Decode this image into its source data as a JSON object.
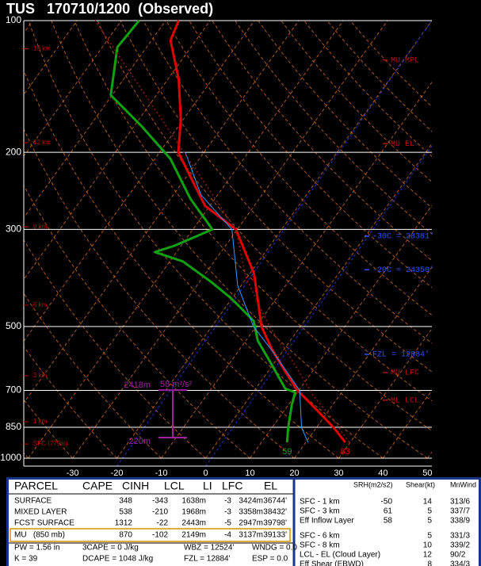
{
  "chart_data": {
    "type": "skewt",
    "title": "TUS   170710/1200  (Observed)",
    "xlim": [
      -41,
      51
    ],
    "xticks": [
      -30,
      -20,
      -10,
      0,
      10,
      20,
      30,
      40,
      50
    ],
    "ylim": [
      1000,
      100
    ],
    "yticks": [
      100,
      200,
      300,
      500,
      700,
      850,
      1000
    ],
    "log_scale": true,
    "grid": true,
    "highlight_isotherms": [
      -20,
      0
    ],
    "series": [
      {
        "color": "#e00000",
        "p": [
          920,
          850,
          737,
          700,
          624,
          563,
          500,
          447,
          378,
          300,
          265,
          200,
          168,
          136,
          111,
          100
        ],
        "values": [
          28.9,
          23.8,
          13.5,
          9.7,
          3.0,
          -2.8,
          -8.8,
          -12.9,
          -19.1,
          -30.3,
          -41.1,
          -55.8,
          -60.6,
          -67.6,
          -75.7,
          -77.1
        ],
        "surface_label": "83"
      },
      {
        "color": "#10a010",
        "p": [
          920,
          850,
          753,
          707,
          694,
          599,
          539,
          486,
          447,
          429,
          394,
          355,
          338,
          327,
          300,
          289,
          255,
          207,
          175,
          148,
          115,
          100
        ],
        "values": [
          15.8,
          13.6,
          10.7,
          9.5,
          6.7,
          -1.4,
          -7.3,
          -11.4,
          -17.5,
          -20.6,
          -27.7,
          -37.1,
          -44.9,
          -41.5,
          -35.6,
          -37.9,
          -45.6,
          -56.5,
          -68.0,
          -80.3,
          -86.6,
          -86.0
        ],
        "surface_label": "59"
      },
      {
        "color": "#3399ff",
        "p": [
          920,
          850,
          700,
          574,
          500,
          403,
          300,
          250,
          200
        ],
        "values": [
          20.5,
          16.6,
          10.2,
          -1.8,
          -10.6,
          -20.8,
          -31.2,
          -43.8,
          -54.2
        ]
      },
      {
        "color": "#8b1a1a",
        "dash": true,
        "p": [
          920,
          818,
          722,
          586,
          500,
          386,
          300,
          100
        ],
        "values": [
          29.8,
          22.6,
          14.3,
          2.5,
          -7.0,
          -20.3,
          -30.3,
          -95.9
        ]
      }
    ],
    "height_labels": [
      {
        "text": "15 km",
        "p": 116
      },
      {
        "text": "12 km",
        "p": 190
      },
      {
        "text": "9 km",
        "p": 296
      },
      {
        "text": "6 km",
        "p": 447
      },
      {
        "text": "3 km",
        "p": 648
      },
      {
        "text": "1 km",
        "p": 825
      },
      {
        "text": "SFC (779m)",
        "p": 928
      }
    ],
    "annotations": [
      {
        "text": "MU MPL",
        "p": 123,
        "color": "#b01818"
      },
      {
        "text": "MU EL",
        "p": 191,
        "color": "#b01818"
      },
      {
        "text": "-30C = 28381'",
        "p": 311,
        "color": "#3050ff"
      },
      {
        "text": "-20C = 24350'",
        "p": 371,
        "color": "#3050ff"
      },
      {
        "text": "FZL = 12884'",
        "p": 579,
        "color": "#3050ff"
      },
      {
        "text": "MU LFC",
        "p": 637,
        "color": "#b01818"
      },
      {
        "text": "ML LCL",
        "p": 737,
        "color": "#b01818"
      }
    ],
    "inflow_layer": {
      "top_p": 699,
      "bottom_p": 897,
      "top_label": "2418m",
      "bottom_label": "220m",
      "label": "58 m²/s²",
      "color": "#a020a0"
    }
  },
  "parcel_table": {
    "columns": [
      "PARCEL",
      "CAPE",
      "CINH",
      "LCL",
      "LI",
      "LFC",
      "EL"
    ],
    "rows": [
      [
        "SURFACE",
        "348",
        "-343",
        "1638m",
        "-3",
        "3424m",
        "36744'"
      ],
      [
        "MIXED LAYER",
        "538",
        "-210",
        "1968m",
        "-3",
        "3358m",
        "38432'"
      ],
      [
        "FCST SURFACE",
        "1312",
        "-22",
        "2443m",
        "-5",
        "2947m",
        "39798'"
      ],
      [
        "MU   (850 mb)",
        "870",
        "-102",
        "2149m",
        "-4",
        "3137m",
        "39133'"
      ]
    ],
    "highlight_row": 3
  },
  "indices": [
    [
      "PW = 1.56 in",
      "3CAPE = 0 J/kg",
      "WBZ = 12524'",
      "WNDG = 0.0"
    ],
    [
      "K = 39",
      "DCAPE = 1048 J/kg",
      "FZL = 12884'",
      "ESP = 0.0"
    ]
  ],
  "shear_table": {
    "columns": [
      "SRH(m2/s2)",
      "Shear(kt)",
      "MnWind"
    ],
    "rows": [
      [
        "SFC - 1 km",
        "-50",
        "14",
        "313/6"
      ],
      [
        "SFC - 3 km",
        "61",
        "5",
        "337/7"
      ],
      [
        "Eff Inflow Layer",
        "58",
        "5",
        "338/9"
      ],
      [
        "SFC - 6 km",
        null,
        "5",
        "331/3"
      ],
      [
        "SFC - 8 km",
        null,
        "10",
        "339/2"
      ],
      [
        "LCL - EL (Cloud Layer)",
        null,
        "12",
        "90/2"
      ],
      [
        "Eff Shear (EBWD)",
        null,
        "8",
        "334/3"
      ]
    ]
  }
}
